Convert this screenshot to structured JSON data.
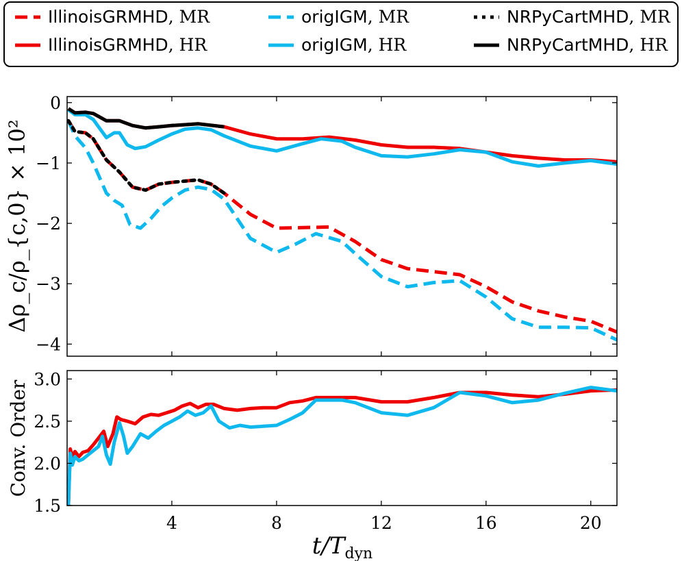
{
  "legend": {
    "items": [
      {
        "label": "IllinoisGRMHD",
        "res": "MR",
        "color": "#ee0000",
        "style": "dashed"
      },
      {
        "label": "origIGM",
        "res": "MR",
        "color": "#0fb9ee",
        "style": "dashed"
      },
      {
        "label": "NRPyCartMHD",
        "res": "MR",
        "color": "#000000",
        "style": "dotted"
      },
      {
        "label": "IllinoisGRMHD",
        "res": "HR",
        "color": "#ee0000",
        "style": "solid"
      },
      {
        "label": "origIGM",
        "res": "HR",
        "color": "#0fb9ee",
        "style": "solid"
      },
      {
        "label": "NRPyCartMHD",
        "res": "HR",
        "color": "#000000",
        "style": "solid"
      }
    ]
  },
  "axes": {
    "xlabel_main": "t/T",
    "xlabel_sub": "dyn",
    "top_ylabel": "Δρ_c/ρ_{c,0} × 10²",
    "bottom_ylabel": "Conv. Order",
    "xlim": [
      0,
      21
    ],
    "x_ticks": [
      "4",
      "8",
      "12",
      "16",
      "20"
    ],
    "top_ylim": [
      -4.2,
      0.1
    ],
    "top_y_ticks": [
      "0",
      "−1",
      "−2",
      "−3",
      "−4"
    ],
    "bottom_ylim": [
      1.5,
      3.1
    ],
    "bottom_y_ticks": [
      "1.5",
      "2.0",
      "2.5",
      "3.0"
    ]
  },
  "chart_data": [
    {
      "type": "line",
      "title": "",
      "xlabel": "t/T_dyn",
      "ylabel": "Δρ_c/ρ_{c,0} × 10²",
      "xlim": [
        0,
        21
      ],
      "ylim": [
        -4.2,
        0.1
      ],
      "series": [
        {
          "name": "IllinoisGRMHD, MR",
          "color": "#ee0000",
          "style": "dashed",
          "x": [
            0.05,
            0.3,
            0.7,
            1.0,
            1.5,
            2.0,
            2.5,
            3.0,
            3.5,
            4.0,
            4.5,
            5.0,
            5.5,
            6.0,
            7.0,
            8.0,
            9.0,
            10.0,
            11.0,
            12.0,
            13.0,
            14.0,
            15.0,
            16.0,
            17.0,
            18.0,
            19.0,
            20.0,
            21.0
          ],
          "y": [
            -0.3,
            -0.48,
            -0.5,
            -0.6,
            -0.95,
            -1.15,
            -1.4,
            -1.45,
            -1.35,
            -1.32,
            -1.3,
            -1.28,
            -1.35,
            -1.5,
            -1.85,
            -2.08,
            -2.07,
            -2.06,
            -2.3,
            -2.6,
            -2.75,
            -2.8,
            -2.85,
            -3.05,
            -3.3,
            -3.45,
            -3.55,
            -3.62,
            -3.8
          ]
        },
        {
          "name": "origIGM, MR",
          "color": "#0fb9ee",
          "style": "dashed",
          "x": [
            0.05,
            0.3,
            0.7,
            1.0,
            1.5,
            1.8,
            2.1,
            2.4,
            2.8,
            3.2,
            3.6,
            4.0,
            4.5,
            5.0,
            5.5,
            6.0,
            7.0,
            8.0,
            8.7,
            9.5,
            10.5,
            11.0,
            12.0,
            13.0,
            14.0,
            15.0,
            16.0,
            17.0,
            18.0,
            19.0,
            20.0,
            21.0
          ],
          "y": [
            -0.3,
            -0.55,
            -0.75,
            -1.0,
            -1.5,
            -1.62,
            -1.7,
            -2.02,
            -2.08,
            -1.92,
            -1.72,
            -1.58,
            -1.45,
            -1.4,
            -1.44,
            -1.6,
            -2.25,
            -2.48,
            -2.35,
            -2.17,
            -2.3,
            -2.5,
            -2.88,
            -3.05,
            -2.98,
            -2.95,
            -3.22,
            -3.58,
            -3.72,
            -3.72,
            -3.73,
            -3.93
          ]
        },
        {
          "name": "NRPyCartMHD, MR",
          "color": "#000000",
          "style": "dotted",
          "x": [
            0.05,
            0.3,
            0.7,
            1.0,
            1.5,
            2.0,
            2.5,
            3.0,
            3.5,
            4.0,
            4.5,
            5.0,
            5.5,
            6.0
          ],
          "y": [
            -0.3,
            -0.48,
            -0.5,
            -0.6,
            -0.95,
            -1.15,
            -1.4,
            -1.45,
            -1.35,
            -1.32,
            -1.3,
            -1.28,
            -1.35,
            -1.5
          ]
        },
        {
          "name": "IllinoisGRMHD, HR",
          "color": "#ee0000",
          "style": "solid",
          "x": [
            0.05,
            0.3,
            0.7,
            1.0,
            1.5,
            2.0,
            2.5,
            3.0,
            3.5,
            4.0,
            5.0,
            6.0,
            7.0,
            8.0,
            9.0,
            10.0,
            11.0,
            12.0,
            13.0,
            14.0,
            15.0,
            16.0,
            17.0,
            18.0,
            19.0,
            20.0,
            21.0
          ],
          "y": [
            -0.1,
            -0.17,
            -0.16,
            -0.18,
            -0.3,
            -0.3,
            -0.38,
            -0.42,
            -0.4,
            -0.38,
            -0.35,
            -0.4,
            -0.52,
            -0.6,
            -0.6,
            -0.57,
            -0.62,
            -0.7,
            -0.74,
            -0.74,
            -0.76,
            -0.82,
            -0.88,
            -0.92,
            -0.95,
            -0.95,
            -0.98
          ]
        },
        {
          "name": "origIGM, HR",
          "color": "#0fb9ee",
          "style": "solid",
          "x": [
            0.05,
            0.3,
            0.7,
            1.0,
            1.5,
            1.8,
            2.0,
            2.3,
            2.6,
            3.0,
            3.5,
            4.0,
            4.5,
            5.0,
            5.5,
            6.0,
            7.0,
            8.0,
            9.0,
            9.7,
            10.5,
            11.0,
            12.0,
            13.0,
            14.0,
            15.0,
            16.0,
            17.0,
            18.0,
            19.0,
            20.0,
            21.0
          ],
          "y": [
            -0.12,
            -0.2,
            -0.2,
            -0.28,
            -0.58,
            -0.5,
            -0.5,
            -0.7,
            -0.76,
            -0.73,
            -0.62,
            -0.52,
            -0.44,
            -0.42,
            -0.45,
            -0.55,
            -0.72,
            -0.8,
            -0.68,
            -0.6,
            -0.64,
            -0.74,
            -0.88,
            -0.9,
            -0.85,
            -0.78,
            -0.82,
            -0.98,
            -1.05,
            -1.0,
            -0.96,
            -1.02
          ]
        },
        {
          "name": "NRPyCartMHD, HR",
          "color": "#000000",
          "style": "solid",
          "x": [
            0.05,
            0.3,
            0.7,
            1.0,
            1.5,
            2.0,
            2.5,
            3.0,
            3.5,
            4.0,
            5.0,
            6.0
          ],
          "y": [
            -0.1,
            -0.17,
            -0.16,
            -0.18,
            -0.3,
            -0.3,
            -0.38,
            -0.42,
            -0.4,
            -0.38,
            -0.35,
            -0.4
          ]
        }
      ]
    },
    {
      "type": "line",
      "title": "",
      "xlabel": "t/T_dyn",
      "ylabel": "Conv. Order",
      "xlim": [
        0,
        21
      ],
      "ylim": [
        1.5,
        3.1
      ],
      "series": [
        {
          "name": "IllinoisGRMHD",
          "color": "#ee0000",
          "style": "solid",
          "x": [
            0.05,
            0.12,
            0.2,
            0.3,
            0.45,
            0.6,
            0.8,
            1.0,
            1.2,
            1.4,
            1.55,
            1.75,
            1.9,
            2.05,
            2.3,
            2.6,
            2.9,
            3.2,
            3.5,
            3.8,
            4.1,
            4.4,
            4.7,
            5.0,
            5.3,
            5.6,
            6.0,
            6.5,
            7.0,
            7.5,
            8.0,
            8.5,
            9.0,
            9.5,
            10.0,
            11.0,
            12.0,
            13.0,
            14.0,
            15.0,
            16.0,
            17.0,
            18.0,
            19.0,
            20.0,
            21.0
          ],
          "y": [
            1.5,
            2.17,
            2.08,
            2.14,
            2.08,
            2.13,
            2.15,
            2.22,
            2.3,
            2.38,
            2.2,
            2.35,
            2.55,
            2.52,
            2.5,
            2.47,
            2.55,
            2.58,
            2.57,
            2.6,
            2.63,
            2.68,
            2.71,
            2.66,
            2.7,
            2.7,
            2.65,
            2.63,
            2.65,
            2.66,
            2.66,
            2.72,
            2.74,
            2.78,
            2.78,
            2.78,
            2.73,
            2.73,
            2.78,
            2.84,
            2.84,
            2.81,
            2.79,
            2.82,
            2.86,
            2.87
          ]
        },
        {
          "name": "origIGM",
          "color": "#0fb9ee",
          "style": "solid",
          "x": [
            0.05,
            0.12,
            0.2,
            0.3,
            0.45,
            0.6,
            0.8,
            1.0,
            1.2,
            1.35,
            1.5,
            1.65,
            1.8,
            2.0,
            2.15,
            2.3,
            2.5,
            2.8,
            3.1,
            3.4,
            3.7,
            4.0,
            4.3,
            4.6,
            4.9,
            5.2,
            5.5,
            5.8,
            6.2,
            6.6,
            7.0,
            7.5,
            8.0,
            8.5,
            9.0,
            9.5,
            10.0,
            10.5,
            11.0,
            12.0,
            13.0,
            14.0,
            15.0,
            16.0,
            17.0,
            18.0,
            19.0,
            20.0,
            21.0
          ],
          "y": [
            1.5,
            2.12,
            1.98,
            2.08,
            2.03,
            2.05,
            2.1,
            2.15,
            2.2,
            2.32,
            2.1,
            1.99,
            2.25,
            2.48,
            2.33,
            2.12,
            2.2,
            2.35,
            2.3,
            2.38,
            2.45,
            2.5,
            2.55,
            2.62,
            2.57,
            2.6,
            2.68,
            2.5,
            2.42,
            2.45,
            2.43,
            2.44,
            2.45,
            2.52,
            2.6,
            2.75,
            2.75,
            2.75,
            2.72,
            2.6,
            2.57,
            2.66,
            2.84,
            2.8,
            2.72,
            2.75,
            2.83,
            2.9,
            2.86
          ]
        }
      ]
    }
  ]
}
